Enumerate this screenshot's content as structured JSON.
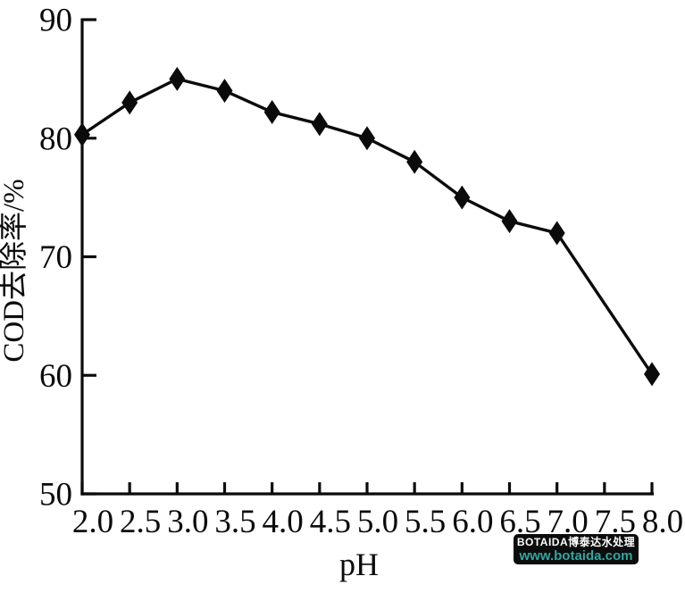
{
  "chart_data": {
    "type": "line",
    "title": "",
    "xlabel": "pH",
    "ylabel": "COD去除率/%",
    "x": [
      2.0,
      2.5,
      3.0,
      3.5,
      4.0,
      4.5,
      5.0,
      5.5,
      6.0,
      6.5,
      7.0,
      8.0
    ],
    "values": [
      80.3,
      83.0,
      85.0,
      84.0,
      82.2,
      81.2,
      80.0,
      78.0,
      75.0,
      73.0,
      72.0,
      60.1
    ],
    "series_name": "COD removal rate",
    "xlim": [
      2.0,
      8.0
    ],
    "ylim": [
      50,
      90
    ],
    "x_tick_labels": [
      "2.0",
      "2.5",
      "3.0",
      "3.5",
      "4.0",
      "4.5",
      "5.0",
      "5.5",
      "6.0",
      "6.5",
      "7.0",
      "7.5",
      "8.0"
    ],
    "y_tick_labels": [
      "50",
      "60",
      "70",
      "80",
      "90"
    ],
    "marker": "diamond",
    "line_color": "#0b0b0b",
    "marker_color": "#0b0b0b",
    "grid": false,
    "legend_position": "none"
  },
  "watermark": {
    "line1": "BOTAIDA博泰达水处理",
    "line2": "www.botaida.com",
    "bg_color": "#0c0c0c",
    "line1_color": "#ffffff",
    "line2_color": "#2fa8a2"
  }
}
